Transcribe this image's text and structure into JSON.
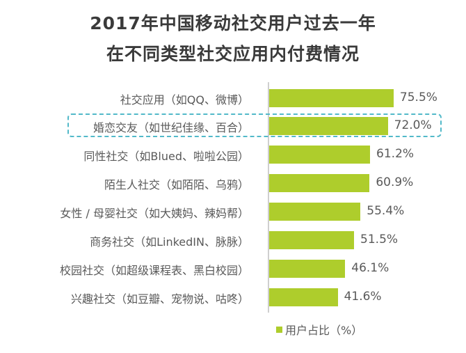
{
  "title": {
    "line1": "2017年中国移动社交用户过去一年",
    "line2": "在不同类型社交应用内付费情况"
  },
  "colors": {
    "bar": "#aecd2c",
    "highlight_border": "#52b9c9",
    "title": "#3a3a3a",
    "text": "#595959"
  },
  "legend": {
    "label": "用户占比（%）"
  },
  "chart_data": {
    "type": "bar",
    "orientation": "horizontal",
    "title": "2017年中国移动社交用户过去一年在不同类型社交应用内付费情况",
    "xlabel": "",
    "ylabel": "",
    "xlim": [
      0,
      100
    ],
    "grid": false,
    "legend_position": "bottom",
    "categories": [
      "社交应用（如QQ、微博）",
      "婚恋交友（如世纪佳缘、百合）",
      "同性社交（如Blued、啦啦公园）",
      "陌生人社交（如陌陌、乌鸦）",
      "女性 / 母婴社交（如大姨妈、辣妈帮）",
      "商务社交（如LinkedIN、脉脉）",
      "校园社交（如超级课程表、黑白校园）",
      "兴趣社交（如豆瓣、宠物说、咕咚）"
    ],
    "series": [
      {
        "name": "用户占比（%）",
        "values": [
          75.5,
          72.0,
          61.2,
          60.9,
          55.4,
          51.5,
          46.1,
          41.6
        ],
        "labels": [
          "75.5%",
          "72.0%",
          "61.2%",
          "60.9%",
          "55.4%",
          "51.5%",
          "46.1%",
          "41.6%"
        ]
      }
    ],
    "annotations": [
      {
        "type": "dashed-highlight-box",
        "target": "婚恋交友（如世纪佳缘、百合）"
      }
    ]
  }
}
